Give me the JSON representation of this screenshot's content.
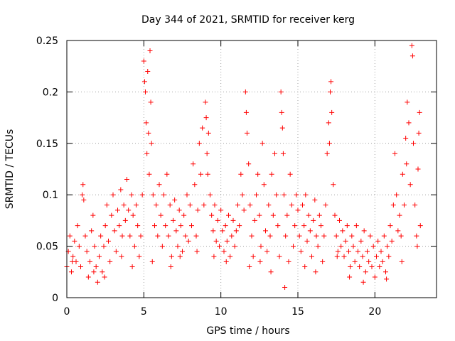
{
  "chart_data": {
    "type": "scatter",
    "title": "Day 344 of 2021, SRMTID for receiver kerg",
    "xlabel": "GPS time / hours",
    "ylabel": "SRMTID / TECUs",
    "xlim": [
      0,
      24
    ],
    "ylim": [
      0,
      0.25
    ],
    "x_ticks": [
      0,
      5,
      10,
      15,
      20
    ],
    "y_ticks": [
      0,
      0.05,
      0.1,
      0.15,
      0.2,
      0.25
    ],
    "x_tick_labels": [
      "0",
      "5",
      "10",
      "15",
      "20"
    ],
    "y_tick_labels": [
      "0",
      "0.05",
      "0.1",
      "0.15",
      "0.2",
      "0.25"
    ],
    "grid": true,
    "marker": "+",
    "color": "#ff0000",
    "series": [
      {
        "name": "SRMTID",
        "points": [
          [
            0.0,
            0.03
          ],
          [
            0.1,
            0.045
          ],
          [
            0.2,
            0.06
          ],
          [
            0.3,
            0.025
          ],
          [
            0.4,
            0.04
          ],
          [
            0.5,
            0.055
          ],
          [
            0.6,
            0.035
          ],
          [
            0.7,
            0.07
          ],
          [
            0.8,
            0.05
          ],
          [
            0.9,
            0.03
          ],
          [
            1.0,
            0.1
          ],
          [
            1.05,
            0.11
          ],
          [
            1.1,
            0.095
          ],
          [
            1.2,
            0.06
          ],
          [
            1.3,
            0.045
          ],
          [
            1.4,
            0.02
          ],
          [
            1.5,
            0.035
          ],
          [
            1.6,
            0.065
          ],
          [
            1.7,
            0.08
          ],
          [
            1.8,
            0.05
          ],
          [
            1.9,
            0.03
          ],
          [
            2.0,
            0.015
          ],
          [
            2.1,
            0.04
          ],
          [
            2.2,
            0.06
          ],
          [
            2.3,
            0.025
          ],
          [
            2.4,
            0.05
          ],
          [
            2.5,
            0.07
          ],
          [
            2.6,
            0.09
          ],
          [
            2.7,
            0.055
          ],
          [
            2.8,
            0.035
          ],
          [
            2.9,
            0.08
          ],
          [
            3.0,
            0.1
          ],
          [
            3.1,
            0.065
          ],
          [
            3.2,
            0.045
          ],
          [
            3.3,
            0.085
          ],
          [
            3.4,
            0.07
          ],
          [
            3.5,
            0.105
          ],
          [
            3.6,
            0.06
          ],
          [
            3.7,
            0.09
          ],
          [
            3.8,
            0.075
          ],
          [
            3.9,
            0.115
          ],
          [
            4.0,
            0.085
          ],
          [
            4.1,
            0.06
          ],
          [
            4.2,
            0.1
          ],
          [
            4.3,
            0.08
          ],
          [
            4.4,
            0.05
          ],
          [
            4.5,
            0.09
          ],
          [
            4.6,
            0.07
          ],
          [
            4.7,
            0.04
          ],
          [
            4.8,
            0.06
          ],
          [
            4.9,
            0.1
          ],
          [
            5.0,
            0.23
          ],
          [
            5.05,
            0.21
          ],
          [
            5.1,
            0.2
          ],
          [
            5.15,
            0.17
          ],
          [
            5.2,
            0.14
          ],
          [
            5.25,
            0.22
          ],
          [
            5.3,
            0.16
          ],
          [
            5.35,
            0.12
          ],
          [
            5.4,
            0.24
          ],
          [
            5.45,
            0.19
          ],
          [
            5.5,
            0.15
          ],
          [
            5.6,
            0.1
          ],
          [
            5.7,
            0.07
          ],
          [
            5.8,
            0.09
          ],
          [
            5.9,
            0.06
          ],
          [
            6.0,
            0.11
          ],
          [
            6.1,
            0.08
          ],
          [
            6.2,
            0.05
          ],
          [
            6.3,
            0.1
          ],
          [
            6.4,
            0.07
          ],
          [
            6.5,
            0.12
          ],
          [
            6.6,
            0.06
          ],
          [
            6.7,
            0.09
          ],
          [
            6.8,
            0.04
          ],
          [
            6.9,
            0.075
          ],
          [
            7.0,
            0.095
          ],
          [
            7.1,
            0.065
          ],
          [
            7.2,
            0.05
          ],
          [
            7.3,
            0.085
          ],
          [
            7.4,
            0.07
          ],
          [
            7.5,
            0.045
          ],
          [
            7.6,
            0.08
          ],
          [
            7.7,
            0.06
          ],
          [
            7.8,
            0.1
          ],
          [
            7.9,
            0.055
          ],
          [
            8.0,
            0.09
          ],
          [
            8.1,
            0.07
          ],
          [
            8.2,
            0.13
          ],
          [
            8.3,
            0.11
          ],
          [
            8.4,
            0.06
          ],
          [
            8.5,
            0.085
          ],
          [
            8.6,
            0.15
          ],
          [
            8.7,
            0.12
          ],
          [
            8.8,
            0.165
          ],
          [
            8.9,
            0.09
          ],
          [
            9.0,
            0.19
          ],
          [
            9.05,
            0.175
          ],
          [
            9.1,
            0.14
          ],
          [
            9.15,
            0.12
          ],
          [
            9.2,
            0.16
          ],
          [
            9.3,
            0.1
          ],
          [
            9.4,
            0.08
          ],
          [
            9.5,
            0.065
          ],
          [
            9.6,
            0.09
          ],
          [
            9.7,
            0.055
          ],
          [
            9.8,
            0.075
          ],
          [
            9.9,
            0.05
          ],
          [
            10.0,
            0.085
          ],
          [
            10.1,
            0.065
          ],
          [
            10.2,
            0.045
          ],
          [
            10.3,
            0.07
          ],
          [
            10.4,
            0.055
          ],
          [
            10.5,
            0.08
          ],
          [
            10.6,
            0.04
          ],
          [
            10.7,
            0.06
          ],
          [
            10.8,
            0.075
          ],
          [
            10.9,
            0.05
          ],
          [
            11.0,
            0.065
          ],
          [
            11.1,
            0.09
          ],
          [
            11.2,
            0.07
          ],
          [
            11.3,
            0.12
          ],
          [
            11.4,
            0.1
          ],
          [
            11.5,
            0.085
          ],
          [
            11.6,
            0.2
          ],
          [
            11.65,
            0.18
          ],
          [
            11.7,
            0.16
          ],
          [
            11.8,
            0.13
          ],
          [
            11.9,
            0.09
          ],
          [
            12.0,
            0.06
          ],
          [
            12.1,
            0.04
          ],
          [
            12.2,
            0.075
          ],
          [
            12.3,
            0.1
          ],
          [
            12.4,
            0.12
          ],
          [
            12.5,
            0.08
          ],
          [
            12.6,
            0.05
          ],
          [
            12.7,
            0.15
          ],
          [
            12.8,
            0.11
          ],
          [
            12.9,
            0.065
          ],
          [
            13.0,
            0.045
          ],
          [
            13.1,
            0.09
          ],
          [
            13.2,
            0.06
          ],
          [
            13.3,
            0.12
          ],
          [
            13.4,
            0.08
          ],
          [
            13.5,
            0.14
          ],
          [
            13.6,
            0.1
          ],
          [
            13.7,
            0.07
          ],
          [
            13.8,
            0.04
          ],
          [
            13.9,
            0.2
          ],
          [
            13.95,
            0.18
          ],
          [
            14.0,
            0.165
          ],
          [
            14.05,
            0.14
          ],
          [
            14.1,
            0.1
          ],
          [
            14.2,
            0.06
          ],
          [
            14.3,
            0.08
          ],
          [
            14.4,
            0.035
          ],
          [
            14.5,
            0.12
          ],
          [
            14.6,
            0.09
          ],
          [
            14.7,
            0.05
          ],
          [
            14.8,
            0.07
          ],
          [
            14.9,
            0.1
          ],
          [
            15.0,
            0.085
          ],
          [
            15.1,
            0.06
          ],
          [
            15.2,
            0.045
          ],
          [
            15.3,
            0.09
          ],
          [
            15.4,
            0.07
          ],
          [
            15.5,
            0.1
          ],
          [
            15.6,
            0.055
          ],
          [
            15.7,
            0.08
          ],
          [
            15.8,
            0.065
          ],
          [
            15.9,
            0.04
          ],
          [
            16.0,
            0.075
          ],
          [
            16.1,
            0.095
          ],
          [
            16.2,
            0.06
          ],
          [
            16.3,
            0.05
          ],
          [
            16.4,
            0.08
          ],
          [
            16.5,
            0.07
          ],
          [
            16.6,
            0.035
          ],
          [
            16.7,
            0.06
          ],
          [
            16.8,
            0.09
          ],
          [
            16.9,
            0.14
          ],
          [
            17.0,
            0.17
          ],
          [
            17.05,
            0.15
          ],
          [
            17.1,
            0.2
          ],
          [
            17.15,
            0.21
          ],
          [
            17.2,
            0.18
          ],
          [
            17.3,
            0.11
          ],
          [
            17.4,
            0.08
          ],
          [
            17.5,
            0.06
          ],
          [
            17.6,
            0.045
          ],
          [
            17.7,
            0.075
          ],
          [
            17.8,
            0.05
          ],
          [
            17.9,
            0.065
          ],
          [
            18.0,
            0.04
          ],
          [
            18.1,
            0.055
          ],
          [
            18.2,
            0.07
          ],
          [
            18.3,
            0.045
          ],
          [
            18.4,
            0.03
          ],
          [
            18.5,
            0.06
          ],
          [
            18.6,
            0.05
          ],
          [
            18.7,
            0.035
          ],
          [
            18.8,
            0.07
          ],
          [
            18.9,
            0.045
          ],
          [
            19.0,
            0.03
          ],
          [
            19.1,
            0.055
          ],
          [
            19.2,
            0.04
          ],
          [
            19.3,
            0.065
          ],
          [
            19.4,
            0.025
          ],
          [
            19.5,
            0.045
          ],
          [
            19.6,
            0.035
          ],
          [
            19.7,
            0.06
          ],
          [
            19.8,
            0.03
          ],
          [
            19.9,
            0.05
          ],
          [
            20.0,
            0.02
          ],
          [
            20.1,
            0.04
          ],
          [
            20.2,
            0.055
          ],
          [
            20.3,
            0.03
          ],
          [
            20.4,
            0.045
          ],
          [
            20.5,
            0.035
          ],
          [
            20.6,
            0.06
          ],
          [
            20.7,
            0.025
          ],
          [
            20.8,
            0.05
          ],
          [
            20.9,
            0.04
          ],
          [
            21.0,
            0.07
          ],
          [
            21.1,
            0.055
          ],
          [
            21.2,
            0.09
          ],
          [
            21.3,
            0.14
          ],
          [
            21.4,
            0.1
          ],
          [
            21.5,
            0.065
          ],
          [
            21.6,
            0.08
          ],
          [
            21.7,
            0.06
          ],
          [
            21.8,
            0.12
          ],
          [
            21.9,
            0.09
          ],
          [
            22.0,
            0.155
          ],
          [
            22.05,
            0.13
          ],
          [
            22.1,
            0.19
          ],
          [
            22.2,
            0.17
          ],
          [
            22.3,
            0.11
          ],
          [
            22.4,
            0.245
          ],
          [
            22.45,
            0.235
          ],
          [
            22.5,
            0.15
          ],
          [
            22.6,
            0.09
          ],
          [
            22.7,
            0.06
          ],
          [
            22.8,
            0.125
          ],
          [
            22.85,
            0.16
          ],
          [
            22.9,
            0.18
          ],
          [
            22.95,
            0.07
          ],
          [
            0.35,
            0.035
          ],
          [
            1.75,
            0.025
          ],
          [
            2.45,
            0.02
          ],
          [
            3.55,
            0.04
          ],
          [
            4.25,
            0.03
          ],
          [
            6.75,
            0.03
          ],
          [
            7.35,
            0.04
          ],
          [
            10.35,
            0.035
          ],
          [
            11.85,
            0.03
          ],
          [
            13.25,
            0.025
          ],
          [
            14.15,
            0.01
          ],
          [
            15.45,
            0.03
          ],
          [
            16.15,
            0.025
          ],
          [
            18.35,
            0.02
          ],
          [
            19.25,
            0.015
          ],
          [
            20.75,
            0.018
          ],
          [
            21.75,
            0.035
          ],
          [
            5.55,
            0.035
          ],
          [
            8.45,
            0.045
          ],
          [
            9.55,
            0.04
          ],
          [
            12.55,
            0.035
          ],
          [
            17.55,
            0.04
          ],
          [
            22.75,
            0.05
          ]
        ]
      }
    ]
  }
}
